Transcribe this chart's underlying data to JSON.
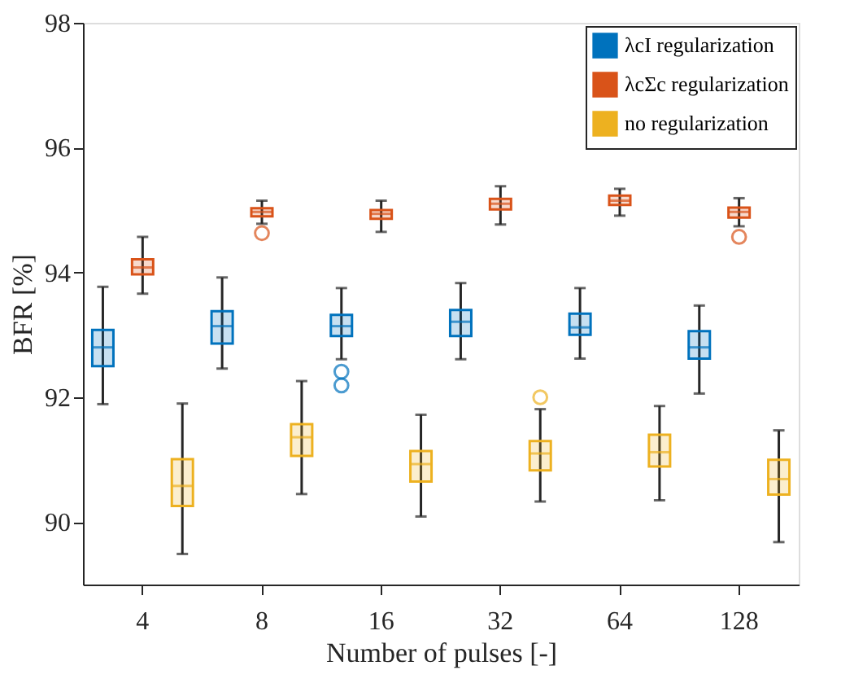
{
  "chart_data": {
    "type": "box",
    "xlabel": "Number of pulses [-]",
    "ylabel": "BFR [%]",
    "categories": [
      "4",
      "8",
      "16",
      "32",
      "64",
      "128"
    ],
    "ylim": [
      89,
      98
    ],
    "yticks": [
      90,
      92,
      94,
      96,
      98
    ],
    "grid": false,
    "legend": "top right",
    "series": [
      {
        "name": "λcI regularization",
        "color": "#0072bd",
        "boxes": [
          {
            "low": 91.89,
            "q1": 92.5,
            "median": 92.8,
            "q3": 93.08,
            "high": 93.77
          },
          {
            "low": 92.46,
            "q1": 92.86,
            "median": 93.14,
            "q3": 93.38,
            "high": 93.92
          },
          {
            "low": 92.61,
            "q1": 92.98,
            "median": 93.14,
            "q3": 93.32,
            "high": 93.75,
            "outliers": [
              92.41,
              92.19
            ]
          },
          {
            "low": 92.61,
            "q1": 92.98,
            "median": 93.21,
            "q3": 93.4,
            "high": 93.83
          },
          {
            "low": 92.62,
            "q1": 93.0,
            "median": 93.12,
            "q3": 93.34,
            "high": 93.75
          },
          {
            "low": 92.06,
            "q1": 92.62,
            "median": 92.8,
            "q3": 93.06,
            "high": 93.47
          }
        ]
      },
      {
        "name": "λcΣc regularization",
        "color": "#d95319",
        "boxes": [
          {
            "low": 93.66,
            "q1": 93.97,
            "median": 94.08,
            "q3": 94.21,
            "high": 94.57
          },
          {
            "low": 94.78,
            "q1": 94.9,
            "median": 94.97,
            "q3": 95.03,
            "high": 95.15,
            "outliers": [
              94.63
            ]
          },
          {
            "low": 94.65,
            "q1": 94.86,
            "median": 94.94,
            "q3": 95.0,
            "high": 95.15
          },
          {
            "low": 94.77,
            "q1": 95.01,
            "median": 95.1,
            "q3": 95.18,
            "high": 95.38
          },
          {
            "low": 94.91,
            "q1": 95.08,
            "median": 95.15,
            "q3": 95.23,
            "high": 95.34
          },
          {
            "low": 94.74,
            "q1": 94.88,
            "median": 94.97,
            "q3": 95.04,
            "high": 95.19,
            "outliers": [
              94.57
            ]
          }
        ]
      },
      {
        "name": "no regularization",
        "color": "#edb120",
        "boxes": [
          {
            "low": 89.49,
            "q1": 90.26,
            "median": 90.58,
            "q3": 91.01,
            "high": 91.9
          },
          {
            "low": 90.45,
            "q1": 91.06,
            "median": 91.36,
            "q3": 91.57,
            "high": 92.26
          },
          {
            "low": 90.09,
            "q1": 90.65,
            "median": 90.93,
            "q3": 91.14,
            "high": 91.72
          },
          {
            "low": 90.33,
            "q1": 90.83,
            "median": 91.1,
            "q3": 91.3,
            "high": 91.81,
            "outliers": [
              92.0
            ]
          },
          {
            "low": 90.35,
            "q1": 90.89,
            "median": 91.12,
            "q3": 91.4,
            "high": 91.86
          },
          {
            "low": 89.68,
            "q1": 90.44,
            "median": 90.69,
            "q3": 91.0,
            "high": 91.47
          }
        ]
      }
    ]
  }
}
